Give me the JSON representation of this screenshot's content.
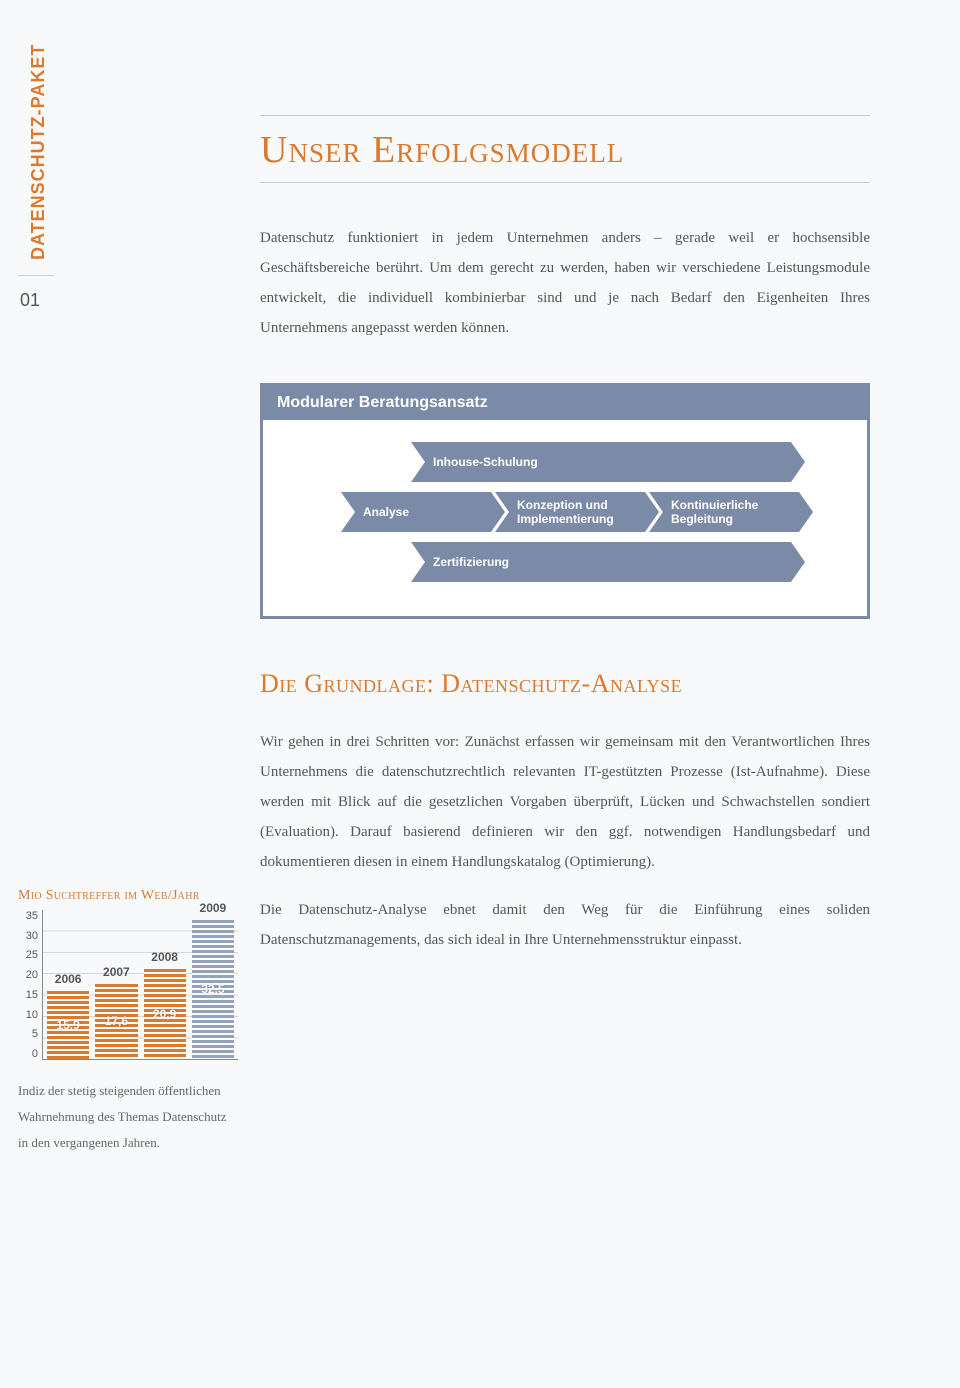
{
  "sidebar": {
    "label": "DATENSCHUTZ-PAKET",
    "page_number": "01"
  },
  "title": "Unser Erfolgsmodell",
  "intro": "Datenschutz funktioniert in jedem Unternehmen anders – gerade weil er hochsensible Geschäftsbereiche berührt. Um dem gerecht zu werden, haben wir verschiedene Leistungsmodule entwickelt, die individuell kombinierbar sind und je nach Bedarf den Eigenheiten Ihres Unternehmens angepasst werden können.",
  "diagram": {
    "header": "Modularer Beratungsansatz",
    "top_arrow": "Inhouse-Schulung",
    "steps": [
      "Analyse",
      "Konzeption und Implementierung",
      "Kontinuierliche Begleitung"
    ],
    "bottom_arrow": "Zertifizierung",
    "header_bg": "#7b8aa6",
    "arrow_bg": "#7b8aa6",
    "arrow_text_color": "#ffffff",
    "border_color": "#7b8aa6"
  },
  "subtitle": "Die Grundlage: Datenschutz-Analyse",
  "body": {
    "p1": "Wir gehen in drei Schritten vor: Zunächst erfassen wir gemeinsam mit den Verantwortlichen Ihres Unternehmens die datenschutzrechtlich relevanten IT-gestützten Prozesse (Ist-Aufnahme). Diese werden mit Blick auf die gesetzlichen Vorgaben überprüft, Lücken und Schwachstellen sondiert (Evaluation). Darauf basierend definieren wir den ggf. notwendigen Handlungsbedarf und dokumentieren diesen in einem Handlungskatalog (Optimierung).",
    "p2": "Die Datenschutz-Analyse ebnet damit den Weg für die Einführung eines soliden Datenschutzmanagements, das sich ideal in Ihre Unternehmensstruktur einpasst."
  },
  "chart": {
    "type": "bar",
    "title": "Mio Suchtreffer im Web/Jahr",
    "y_ticks": [
      "35",
      "30",
      "25",
      "20",
      "15",
      "10",
      "5",
      "0"
    ],
    "y_max": 35,
    "bars": [
      {
        "year": "2006",
        "value": 15.9,
        "label": "15,9",
        "color": "orange"
      },
      {
        "year": "2007",
        "value": 17.6,
        "label": "17,6",
        "color": "orange"
      },
      {
        "year": "2008",
        "value": 20.9,
        "label": "20,9",
        "color": "orange"
      },
      {
        "year": "2009",
        "value": 32.5,
        "label": "32,5",
        "color": "blue"
      }
    ],
    "colors": {
      "orange": "#d97a2e",
      "blue": "#94a3bd"
    },
    "caption": "Indiz der stetig steigenden öffentlichen Wahrnehmung des Themas Datenschutz in den vergangenen Jahren."
  }
}
